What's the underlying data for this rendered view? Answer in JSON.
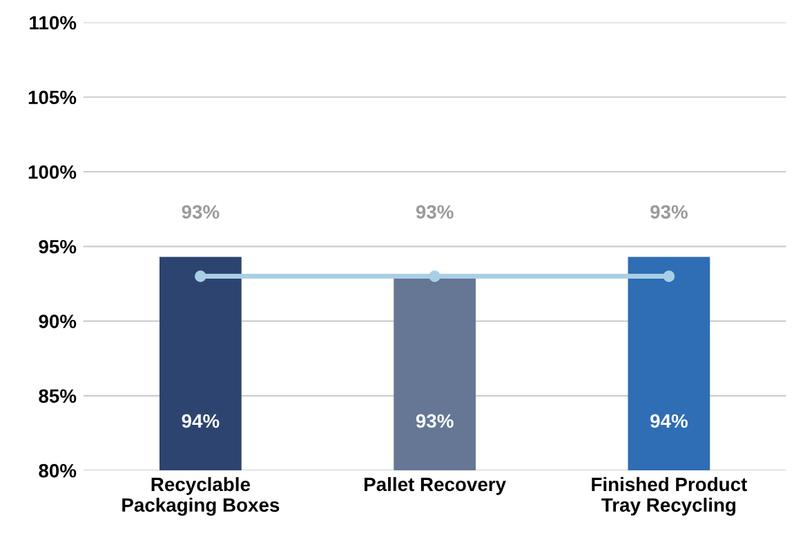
{
  "chart_data": {
    "type": "bar",
    "categories": [
      "Recyclable\nPackaging Boxes",
      "Pallet Recovery",
      "Finished Product\nTray Recycling"
    ],
    "series": [
      {
        "colors": [
          "#2e4470",
          "#657795",
          "#2f6db5"
        ],
        "values": [
          94.3,
          93.1,
          94.3
        ],
        "value_labels": [
          "94%",
          "93%",
          "94%"
        ]
      },
      {
        "type": "line",
        "color": "#a9cfe6",
        "marker": "circle",
        "values": [
          93,
          93,
          93
        ],
        "value_labels": [
          "93%",
          "93%",
          "93%"
        ]
      }
    ],
    "ylim": [
      80,
      110
    ],
    "yticks": [
      {
        "value": 80,
        "label": "80%"
      },
      {
        "value": 85,
        "label": "85%"
      },
      {
        "value": 90,
        "label": "90%"
      },
      {
        "value": 95,
        "label": "95%"
      },
      {
        "value": 100,
        "label": "100%"
      },
      {
        "value": 105,
        "label": "105%"
      },
      {
        "value": 110,
        "label": "110%"
      }
    ],
    "grid": "y"
  }
}
